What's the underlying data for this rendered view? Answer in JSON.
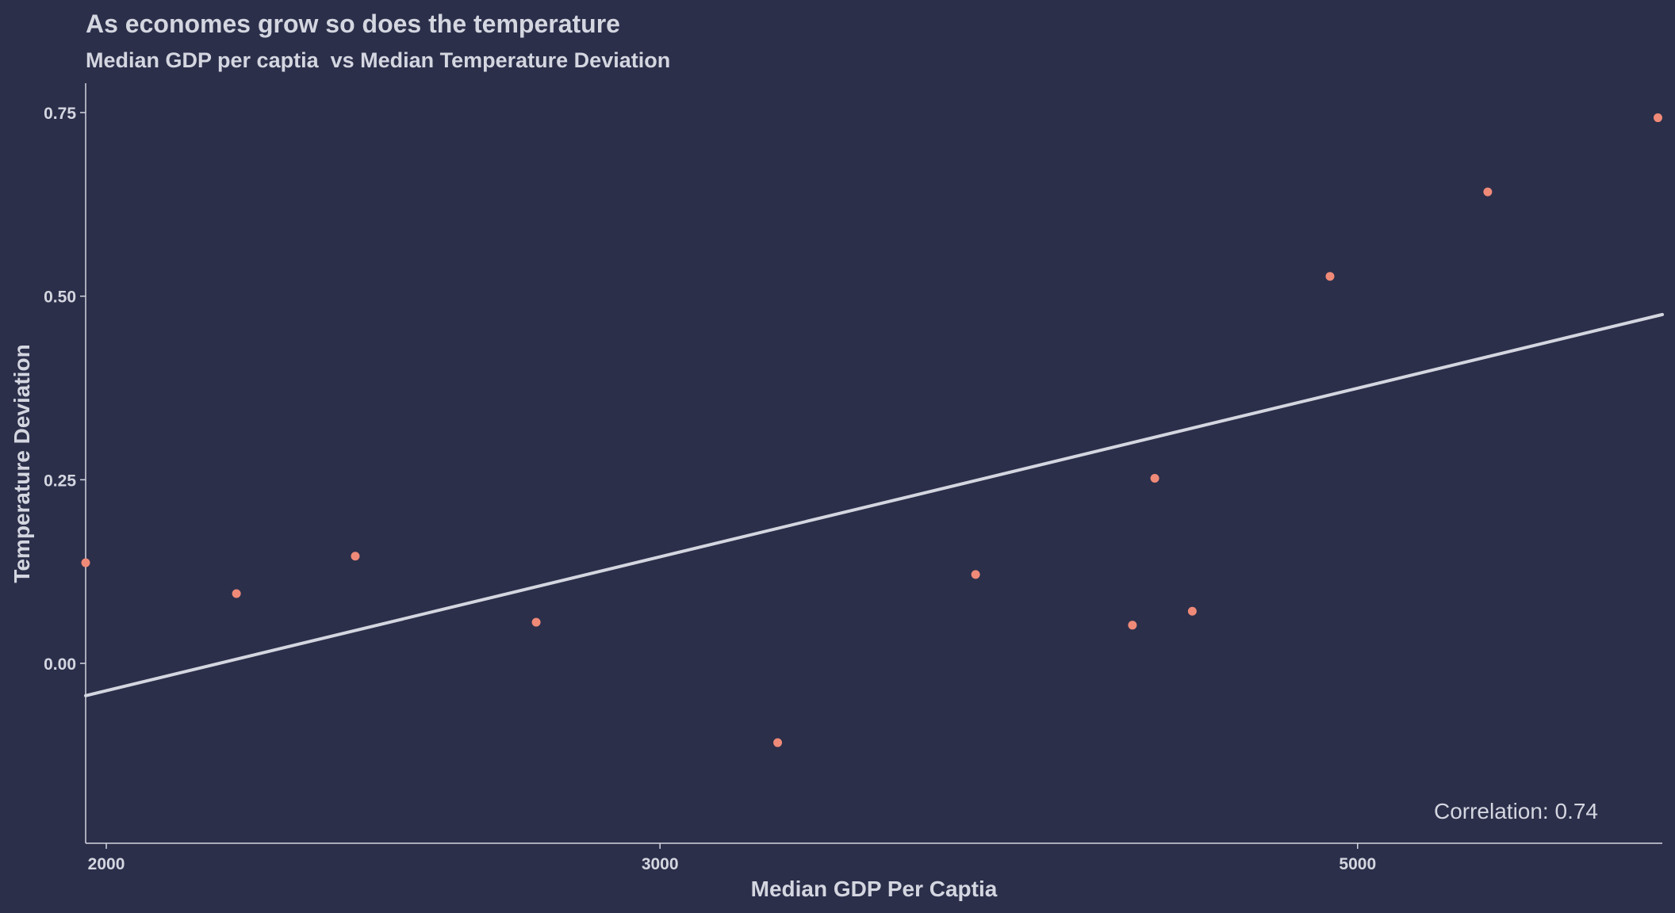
{
  "colors": {
    "background": "#2b2f4a",
    "text": "#d4d6e0",
    "axis": "#d4d6e0",
    "point": "#f08a78",
    "trend": "#d4d6e0"
  },
  "chart_data": {
    "type": "scatter",
    "title": "As economes grow so does the temperature",
    "subtitle": "Median GDP per captia  vs Median Temperature Deviation",
    "xlabel": "Median GDP Per Captia",
    "ylabel": "Temperature Deviation",
    "x_scale": "log10",
    "xlim": [
      1970,
      6250
    ],
    "ylim": [
      -0.245,
      0.79
    ],
    "x_ticks": [
      {
        "value": 2000,
        "label": "2000"
      },
      {
        "value": 3000,
        "label": "3000"
      },
      {
        "value": 5000,
        "label": "5000"
      }
    ],
    "y_ticks": [
      {
        "value": 0.0,
        "label": "0.00"
      },
      {
        "value": 0.25,
        "label": "0.25"
      },
      {
        "value": 0.5,
        "label": "0.50"
      },
      {
        "value": 0.75,
        "label": "0.75"
      }
    ],
    "grid": false,
    "points": [
      {
        "x": 1970,
        "y": 0.137
      },
      {
        "x": 2200,
        "y": 0.095
      },
      {
        "x": 2400,
        "y": 0.146
      },
      {
        "x": 2740,
        "y": 0.056
      },
      {
        "x": 3270,
        "y": -0.108
      },
      {
        "x": 3780,
        "y": 0.121
      },
      {
        "x": 4240,
        "y": 0.052
      },
      {
        "x": 4310,
        "y": 0.252
      },
      {
        "x": 4430,
        "y": 0.071
      },
      {
        "x": 4900,
        "y": 0.527
      },
      {
        "x": 5500,
        "y": 0.642
      },
      {
        "x": 6230,
        "y": 0.743
      }
    ],
    "trend_line": {
      "start": {
        "x": 1970,
        "y": -0.044
      },
      "end": {
        "x": 6250,
        "y": 0.475
      }
    },
    "annotation": "Correlation: 0.74"
  }
}
